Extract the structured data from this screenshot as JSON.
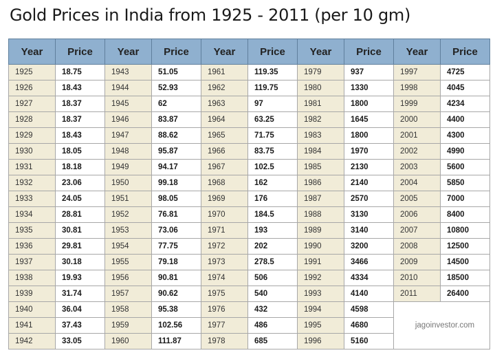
{
  "title": "Gold Prices in India from 1925 - 2011 (per 10 gm)",
  "header": {
    "year": "Year",
    "price": "Price"
  },
  "credit": "jagoinvestor.com",
  "columns": [
    [
      [
        "1925",
        "18.75"
      ],
      [
        "1926",
        "18.43"
      ],
      [
        "1927",
        "18.37"
      ],
      [
        "1928",
        "18.37"
      ],
      [
        "1929",
        "18.43"
      ],
      [
        "1930",
        "18.05"
      ],
      [
        "1931",
        "18.18"
      ],
      [
        "1932",
        "23.06"
      ],
      [
        "1933",
        "24.05"
      ],
      [
        "1934",
        "28.81"
      ],
      [
        "1935",
        "30.81"
      ],
      [
        "1936",
        "29.81"
      ],
      [
        "1937",
        "30.18"
      ],
      [
        "1938",
        "19.93"
      ],
      [
        "1939",
        "31.74"
      ],
      [
        "1940",
        "36.04"
      ],
      [
        "1941",
        "37.43"
      ],
      [
        "1942",
        "33.05"
      ]
    ],
    [
      [
        "1943",
        "51.05"
      ],
      [
        "1944",
        "52.93"
      ],
      [
        "1945",
        "62"
      ],
      [
        "1946",
        "83.87"
      ],
      [
        "1947",
        "88.62"
      ],
      [
        "1948",
        "95.87"
      ],
      [
        "1949",
        "94.17"
      ],
      [
        "1950",
        "99.18"
      ],
      [
        "1951",
        "98.05"
      ],
      [
        "1952",
        "76.81"
      ],
      [
        "1953",
        "73.06"
      ],
      [
        "1954",
        "77.75"
      ],
      [
        "1955",
        "79.18"
      ],
      [
        "1956",
        "90.81"
      ],
      [
        "1957",
        "90.62"
      ],
      [
        "1958",
        "95.38"
      ],
      [
        "1959",
        "102.56"
      ],
      [
        "1960",
        "111.87"
      ]
    ],
    [
      [
        "1961",
        "119.35"
      ],
      [
        "1962",
        "119.75"
      ],
      [
        "1963",
        "97"
      ],
      [
        "1964",
        "63.25"
      ],
      [
        "1965",
        "71.75"
      ],
      [
        "1966",
        "83.75"
      ],
      [
        "1967",
        "102.5"
      ],
      [
        "1968",
        "162"
      ],
      [
        "1969",
        "176"
      ],
      [
        "1970",
        "184.5"
      ],
      [
        "1971",
        "193"
      ],
      [
        "1972",
        "202"
      ],
      [
        "1973",
        "278.5"
      ],
      [
        "1974",
        "506"
      ],
      [
        "1975",
        "540"
      ],
      [
        "1976",
        "432"
      ],
      [
        "1977",
        "486"
      ],
      [
        "1978",
        "685"
      ]
    ],
    [
      [
        "1979",
        "937"
      ],
      [
        "1980",
        "1330"
      ],
      [
        "1981",
        "1800"
      ],
      [
        "1982",
        "1645"
      ],
      [
        "1983",
        "1800"
      ],
      [
        "1984",
        "1970"
      ],
      [
        "1985",
        "2130"
      ],
      [
        "1986",
        "2140"
      ],
      [
        "1987",
        "2570"
      ],
      [
        "1988",
        "3130"
      ],
      [
        "1989",
        "3140"
      ],
      [
        "1990",
        "3200"
      ],
      [
        "1991",
        "3466"
      ],
      [
        "1992",
        "4334"
      ],
      [
        "1993",
        "4140"
      ],
      [
        "1994",
        "4598"
      ],
      [
        "1995",
        "4680"
      ],
      [
        "1996",
        "5160"
      ]
    ],
    [
      [
        "1997",
        "4725"
      ],
      [
        "1998",
        "4045"
      ],
      [
        "1999",
        "4234"
      ],
      [
        "2000",
        "4400"
      ],
      [
        "2001",
        "4300"
      ],
      [
        "2002",
        "4990"
      ],
      [
        "2003",
        "5600"
      ],
      [
        "2004",
        "5850"
      ],
      [
        "2005",
        "7000"
      ],
      [
        "2006",
        "8400"
      ],
      [
        "2007",
        "10800"
      ],
      [
        "2008",
        "12500"
      ],
      [
        "2009",
        "14500"
      ],
      [
        "2010",
        "18500"
      ],
      [
        "2011",
        "26400"
      ]
    ]
  ]
}
